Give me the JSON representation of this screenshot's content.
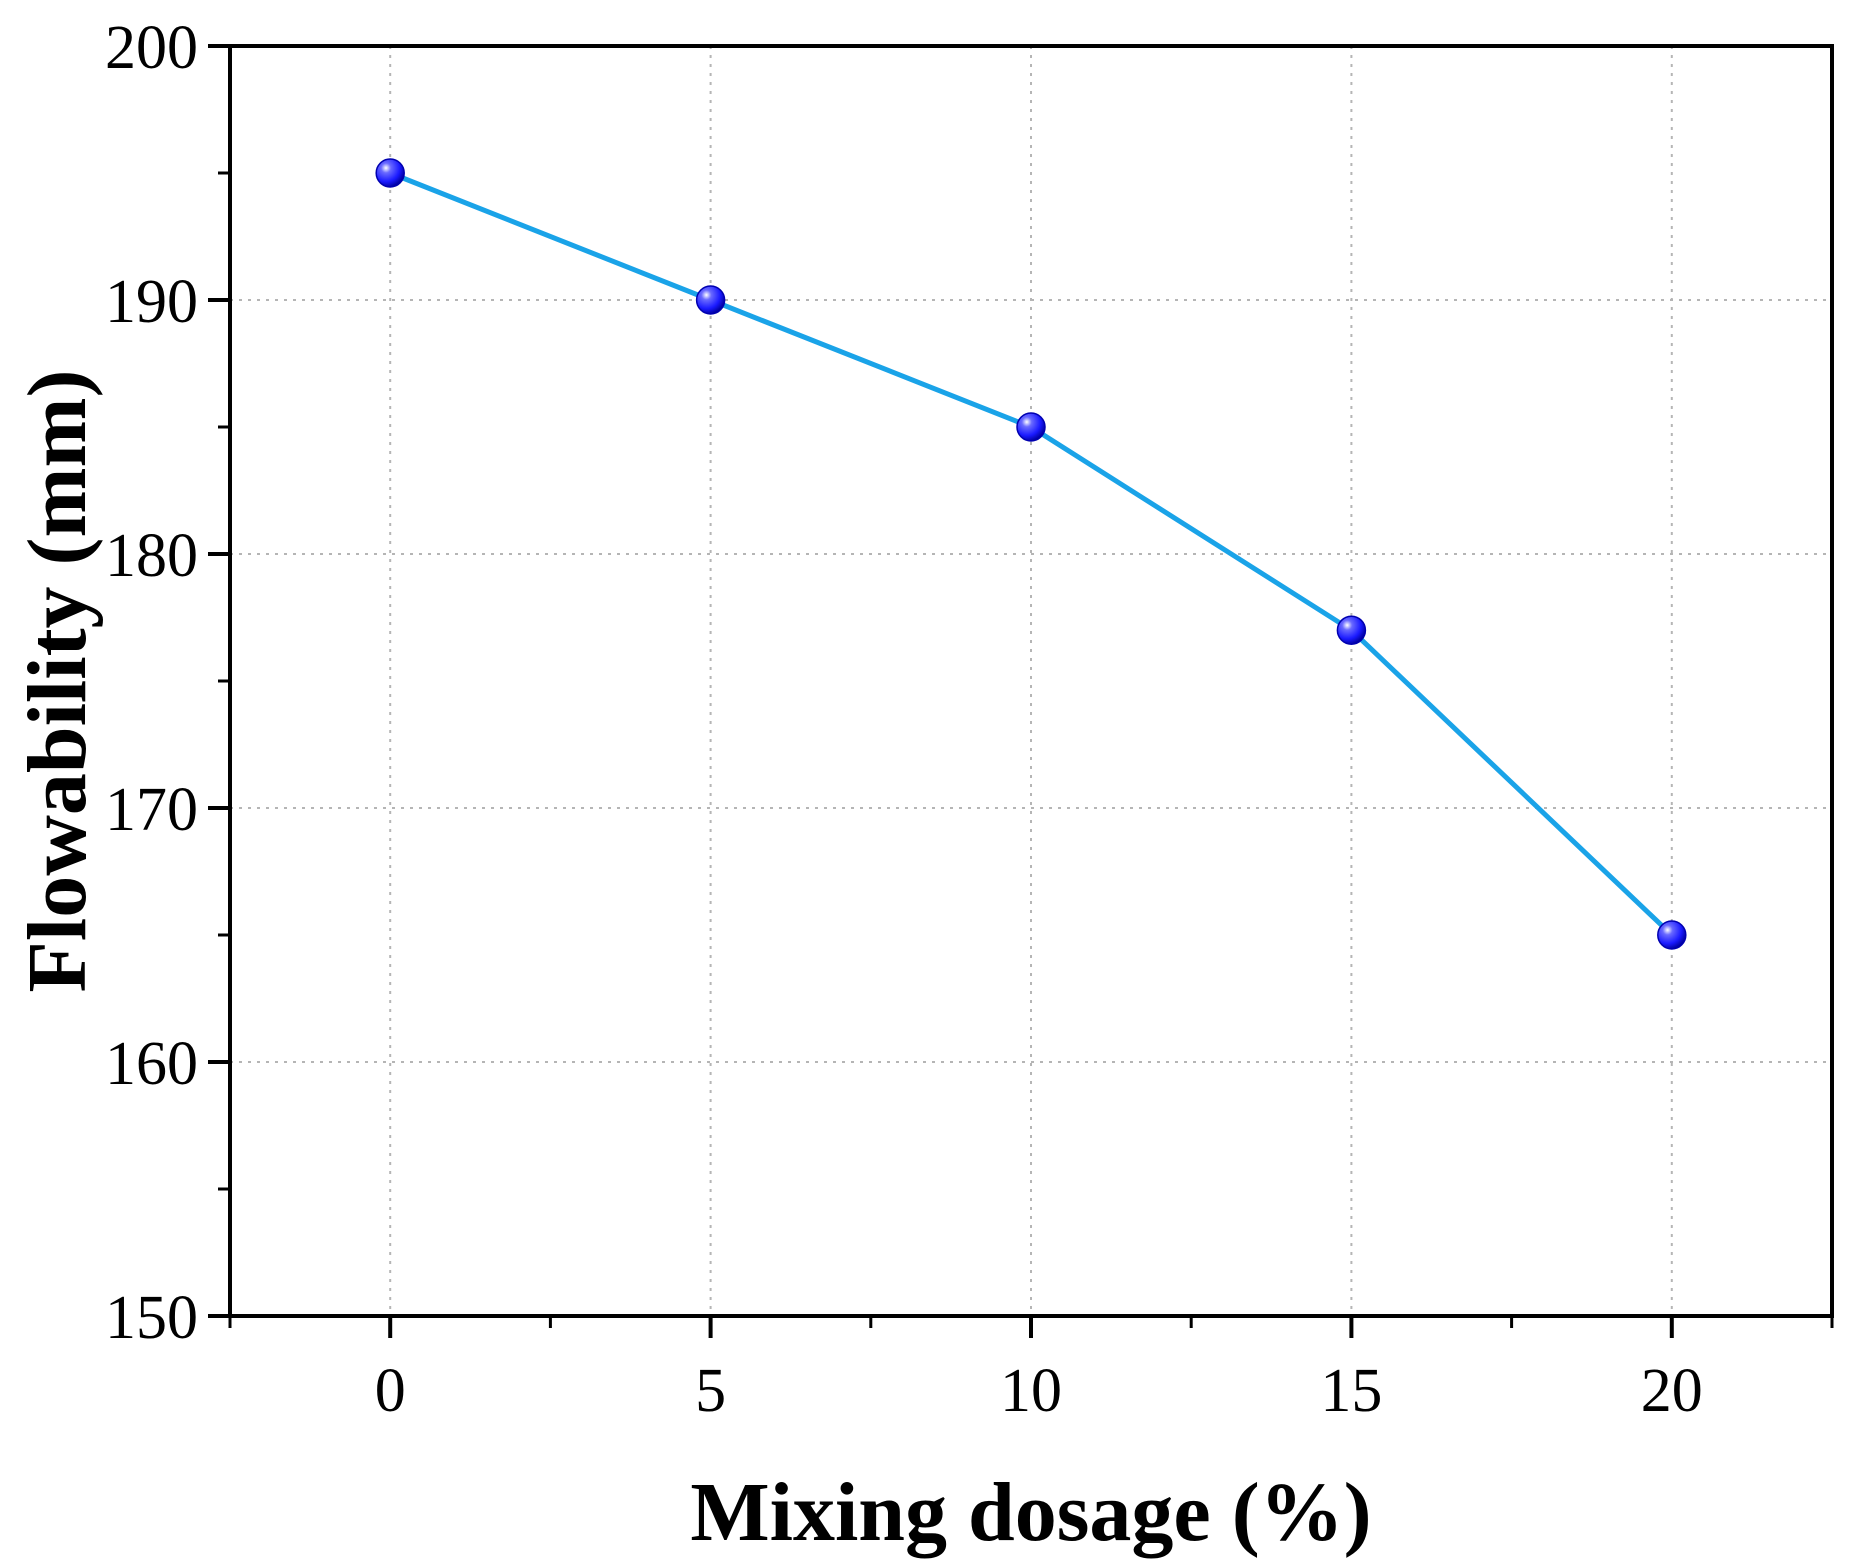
{
  "chart_data": {
    "type": "line",
    "title": "",
    "xlabel": "Mixing dosage (%)",
    "ylabel": "Flowability (mm)",
    "x": [
      0,
      5,
      10,
      15,
      20
    ],
    "series": [
      {
        "name": "Flowability",
        "values": [
          195,
          190,
          185,
          177,
          165
        ]
      }
    ],
    "xlim": [
      -2.5,
      22.5
    ],
    "ylim": [
      150,
      200
    ],
    "xticks": [
      "0",
      "5",
      "10",
      "15",
      "20"
    ],
    "yticks": [
      "150",
      "160",
      "170",
      "180",
      "190",
      "200"
    ],
    "grid": true,
    "line_color": "#1aa3e8",
    "marker_color": "#1a1aff"
  }
}
